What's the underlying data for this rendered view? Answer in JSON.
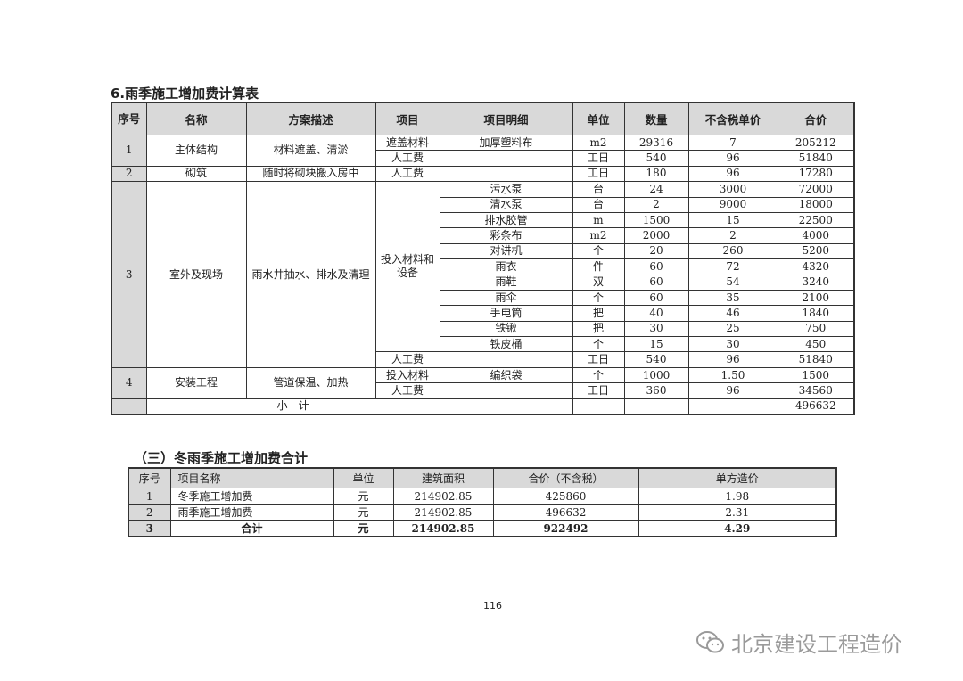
{
  "table1": {
    "title": "6.雨季施工增加费计算表",
    "headers": [
      "序号",
      "名称",
      "方案描述",
      "项目",
      "项目明细",
      "单位",
      "数量",
      "不含税单价",
      "合价"
    ],
    "groups": [
      {
        "no": "1",
        "name": "主体结构",
        "desc": "材料遮盖、清淤",
        "sections": [
          {
            "item": "遮盖材料",
            "rows": [
              {
                "detail": "加厚塑料布",
                "unit": "m2",
                "qty": "29316",
                "price": "7",
                "total": "205212"
              }
            ]
          },
          {
            "item": "人工费",
            "rows": [
              {
                "detail": "",
                "unit": "工日",
                "qty": "540",
                "price": "96",
                "total": "51840"
              }
            ]
          }
        ]
      },
      {
        "no": "2",
        "name": "砌筑",
        "desc": "随时将砌块搬入房中",
        "sections": [
          {
            "item": "人工费",
            "rows": [
              {
                "detail": "",
                "unit": "工日",
                "qty": "180",
                "price": "96",
                "total": "17280"
              }
            ]
          }
        ]
      },
      {
        "no": "3",
        "name": "室外及现场",
        "desc": "雨水井抽水、排水及清理",
        "sections": [
          {
            "item": "投入材料和设备",
            "rows": [
              {
                "detail": "污水泵",
                "unit": "台",
                "qty": "24",
                "price": "3000",
                "total": "72000"
              },
              {
                "detail": "清水泵",
                "unit": "台",
                "qty": "2",
                "price": "9000",
                "total": "18000"
              },
              {
                "detail": "排水胶管",
                "unit": "m",
                "qty": "1500",
                "price": "15",
                "total": "22500"
              },
              {
                "detail": "彩条布",
                "unit": "m2",
                "qty": "2000",
                "price": "2",
                "total": "4000"
              },
              {
                "detail": "对讲机",
                "unit": "个",
                "qty": "20",
                "price": "260",
                "total": "5200"
              },
              {
                "detail": "雨衣",
                "unit": "件",
                "qty": "60",
                "price": "72",
                "total": "4320"
              },
              {
                "detail": "雨鞋",
                "unit": "双",
                "qty": "60",
                "price": "54",
                "total": "3240"
              },
              {
                "detail": "雨伞",
                "unit": "个",
                "qty": "60",
                "price": "35",
                "total": "2100"
              },
              {
                "detail": "手电筒",
                "unit": "把",
                "qty": "40",
                "price": "46",
                "total": "1840"
              },
              {
                "detail": "铁锹",
                "unit": "把",
                "qty": "30",
                "price": "25",
                "total": "750"
              },
              {
                "detail": "铁皮桶",
                "unit": "个",
                "qty": "15",
                "price": "30",
                "total": "450"
              }
            ]
          },
          {
            "item": "人工费",
            "rows": [
              {
                "detail": "",
                "unit": "工日",
                "qty": "540",
                "price": "96",
                "total": "51840"
              }
            ]
          }
        ]
      },
      {
        "no": "4",
        "name": "安装工程",
        "desc": "管道保温、加热",
        "sections": [
          {
            "item": "投入材料",
            "rows": [
              {
                "detail": "编织袋",
                "unit": "个",
                "qty": "1000",
                "price": "1.50",
                "total": "1500"
              }
            ]
          },
          {
            "item": "人工费",
            "rows": [
              {
                "detail": "",
                "unit": "工日",
                "qty": "360",
                "price": "96",
                "total": "34560"
              }
            ]
          }
        ]
      }
    ],
    "subtotal_label": "小　计",
    "subtotal_value": "496632"
  },
  "table2": {
    "title": "（三）冬雨季施工增加费合计",
    "headers": [
      "序号",
      "项目名称",
      "单位",
      "建筑面积",
      "合价（不含税）",
      "单方造价"
    ],
    "rows": [
      [
        "1",
        "冬季施工增加费",
        "元",
        "214902.85",
        "425860",
        "1.98"
      ],
      [
        "2",
        "雨季施工增加费",
        "元",
        "214902.85",
        "496632",
        "2.31"
      ],
      [
        "3",
        "合计",
        "元",
        "214902.85",
        "922492",
        "4.29"
      ]
    ]
  },
  "page_number": "116",
  "watermark": "北京建设工程造价"
}
